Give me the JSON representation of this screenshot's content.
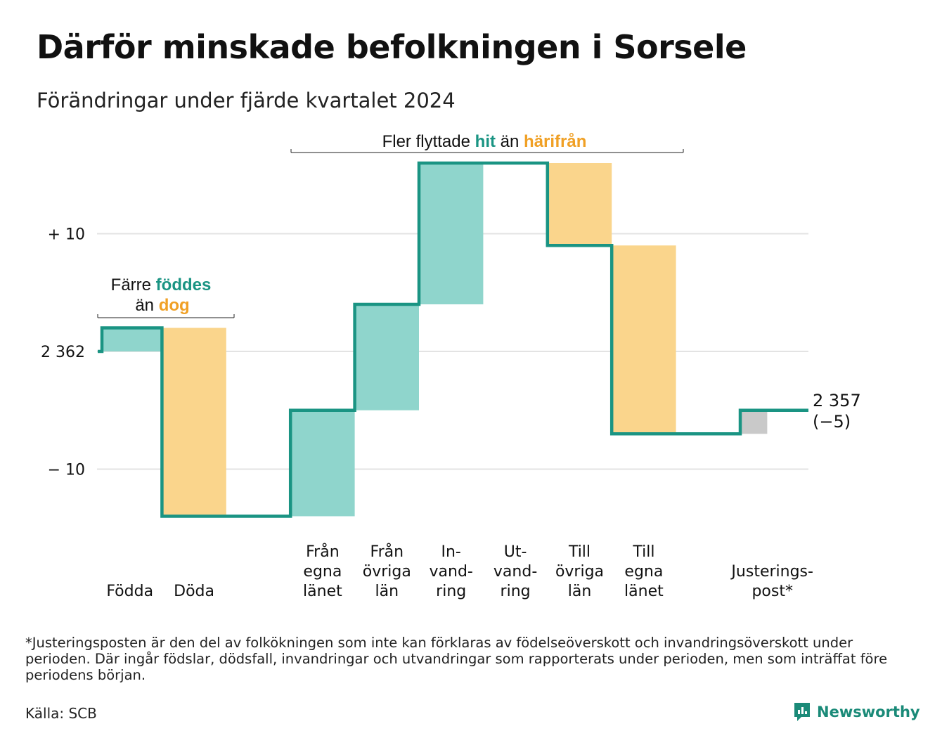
{
  "title": "Därför minskade befolkningen i Sorsele",
  "subtitle": "Förändringar under fjärde kvartalet 2024",
  "footnote": "*Justeringsposten är den del av folkökningen som inte kan förklaras av födelseöverskott och invandringsöverskott under perioden. Där ingår födslar, dödsfall, invandringar och utvandringar som rapporterats under perioden, men som inträffat före periodens början.",
  "source": "Källa: SCB",
  "brand": "Newsworthy",
  "colors": {
    "inflow": "#8fd5cc",
    "outflow": "#fad58c",
    "adjustment": "#c9c9c9",
    "line": "#1a9483",
    "grid": "#e3e3e3",
    "teal_text": "#1a9483",
    "orange_text": "#f0a025"
  },
  "annotations": {
    "births": {
      "line1_pre": "Färre",
      "line1_em": "föddes",
      "line2_pre": "än",
      "line2_em": "dog"
    },
    "migration": {
      "pre": "Fler flyttade",
      "em1": "hit",
      "mid": "än",
      "em2": "härifrån"
    }
  },
  "chart_data": {
    "type": "waterfall",
    "start_value": 2362,
    "end_value": 2357,
    "end_label": [
      "2 357",
      "(−5)"
    ],
    "yticks": [
      {
        "value": 10,
        "label": "+ 10"
      },
      {
        "value": 0,
        "label": "2 362"
      },
      {
        "value": -10,
        "label": "− 10"
      }
    ],
    "ylim": [
      -15,
      17
    ],
    "grid": true,
    "steps": [
      {
        "label": [
          "Födda"
        ],
        "change": 2,
        "kind": "inflow"
      },
      {
        "label": [
          "Döda"
        ],
        "change": -16,
        "kind": "outflow"
      },
      {
        "label": [
          "Från",
          "egna",
          "länet"
        ],
        "change": 9,
        "kind": "inflow"
      },
      {
        "label": [
          "Från",
          "övriga",
          "län"
        ],
        "change": 9,
        "kind": "inflow"
      },
      {
        "label": [
          "In-",
          "vand-",
          "ring"
        ],
        "change": 12,
        "kind": "inflow"
      },
      {
        "label": [
          "Ut-",
          "vand-",
          "ring"
        ],
        "change": 0,
        "kind": "outflow"
      },
      {
        "label": [
          "Till",
          "övriga",
          "län"
        ],
        "change": -7,
        "kind": "outflow"
      },
      {
        "label": [
          "Till",
          "egna",
          "länet"
        ],
        "change": -16,
        "kind": "outflow"
      },
      {
        "label": [
          "Justerings-",
          "post*"
        ],
        "change": 2,
        "kind": "adjustment"
      }
    ]
  }
}
